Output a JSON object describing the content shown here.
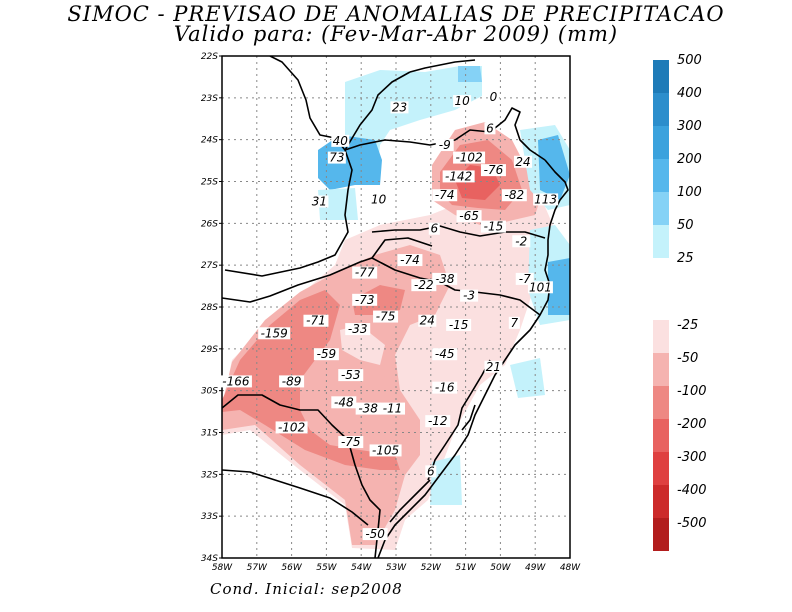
{
  "title": "SIMOC - PREVISAO DE ANOMALIAS DE PRECIPITACAO",
  "subtitle": "Valido para: (Fev-Mar-Abr 2009) (mm)",
  "footer": "Cond. Inicial: sep2008",
  "axes": {
    "lat_labels": [
      "22S",
      "23S",
      "24S",
      "25S",
      "26S",
      "27S",
      "28S",
      "29S",
      "30S",
      "31S",
      "32S",
      "33S",
      "34S"
    ],
    "lon_labels": [
      "58W",
      "57W",
      "56W",
      "55W",
      "54W",
      "53W",
      "52W",
      "51W",
      "50W",
      "49W",
      "48W"
    ]
  },
  "colorbar": {
    "positive_labels": [
      "500",
      "400",
      "300",
      "200",
      "100",
      "50",
      "25"
    ],
    "negative_labels": [
      "-25",
      "-50",
      "-100",
      "-200",
      "-300",
      "-400",
      "-500"
    ],
    "positive_colors": [
      "#1e7bb8",
      "#2c8ecc",
      "#3ba2dd",
      "#55b7ec",
      "#85d2f6",
      "#c4f2fb"
    ],
    "negative_colors": [
      "#fbe0e0",
      "#f5b3b0",
      "#ee8883",
      "#e86260",
      "#df4040",
      "#cc2a2a",
      "#b21d1d"
    ]
  },
  "contour_labels": [
    {
      "text": "23",
      "lon": -52.9,
      "lat": -23.3
    },
    {
      "text": "10",
      "lon": -51.1,
      "lat": -23.15
    },
    {
      "text": "0",
      "lon": -50.2,
      "lat": -23.05
    },
    {
      "text": "6",
      "lon": -50.3,
      "lat": -23.8
    },
    {
      "text": "40",
      "lon": -54.6,
      "lat": -24.1
    },
    {
      "text": "73",
      "lon": -54.7,
      "lat": -24.5
    },
    {
      "text": "-9",
      "lon": -51.6,
      "lat": -24.2
    },
    {
      "text": "-102",
      "lon": -50.9,
      "lat": -24.5
    },
    {
      "text": "24",
      "lon": -49.35,
      "lat": -24.6
    },
    {
      "text": "-76",
      "lon": -50.2,
      "lat": -24.8
    },
    {
      "text": "-142",
      "lon": -51.2,
      "lat": -24.95
    },
    {
      "text": "-74",
      "lon": -51.6,
      "lat": -25.4
    },
    {
      "text": "-82",
      "lon": -49.6,
      "lat": -25.4
    },
    {
      "text": "113",
      "lon": -48.7,
      "lat": -25.5
    },
    {
      "text": "31",
      "lon": -55.2,
      "lat": -25.55
    },
    {
      "text": "10",
      "lon": -53.5,
      "lat": -25.5
    },
    {
      "text": "-65",
      "lon": -50.9,
      "lat": -25.9
    },
    {
      "text": "-15",
      "lon": -50.2,
      "lat": -26.15
    },
    {
      "text": "6",
      "lon": -51.9,
      "lat": -26.2
    },
    {
      "text": "-2",
      "lon": -49.4,
      "lat": -26.5
    },
    {
      "text": "-74",
      "lon": -52.6,
      "lat": -26.95
    },
    {
      "text": "-77",
      "lon": -53.9,
      "lat": -27.25
    },
    {
      "text": "-38",
      "lon": -51.6,
      "lat": -27.4
    },
    {
      "text": "-22",
      "lon": -52.2,
      "lat": -27.55
    },
    {
      "text": "-7",
      "lon": -49.3,
      "lat": -27.4
    },
    {
      "text": "101",
      "lon": -48.85,
      "lat": -27.6
    },
    {
      "text": "-3",
      "lon": -50.9,
      "lat": -27.8
    },
    {
      "text": "-73",
      "lon": -53.9,
      "lat": -27.9
    },
    {
      "text": "-75",
      "lon": -53.3,
      "lat": -28.3
    },
    {
      "text": "-71",
      "lon": -55.3,
      "lat": -28.4
    },
    {
      "text": "24",
      "lon": -52.1,
      "lat": -28.4
    },
    {
      "text": "-15",
      "lon": -51.2,
      "lat": -28.5
    },
    {
      "text": "7",
      "lon": -49.6,
      "lat": -28.45
    },
    {
      "text": "-33",
      "lon": -54.1,
      "lat": -28.6
    },
    {
      "text": "-159",
      "lon": -56.5,
      "lat": -28.7
    },
    {
      "text": "-59",
      "lon": -55.0,
      "lat": -29.2
    },
    {
      "text": "-45",
      "lon": -51.6,
      "lat": -29.2
    },
    {
      "text": "21",
      "lon": -50.2,
      "lat": -29.5
    },
    {
      "text": "-53",
      "lon": -54.3,
      "lat": -29.7
    },
    {
      "text": "-166",
      "lon": -57.6,
      "lat": -29.85
    },
    {
      "text": "-89",
      "lon": -56.0,
      "lat": -29.85
    },
    {
      "text": "-16",
      "lon": -51.6,
      "lat": -30.0
    },
    {
      "text": "-48",
      "lon": -54.5,
      "lat": -30.35
    },
    {
      "text": "-38",
      "lon": -53.8,
      "lat": -30.5
    },
    {
      "text": "-11",
      "lon": -53.1,
      "lat": -30.5
    },
    {
      "text": "-12",
      "lon": -51.8,
      "lat": -30.8
    },
    {
      "text": "-102",
      "lon": -56.0,
      "lat": -30.95
    },
    {
      "text": "-75",
      "lon": -54.3,
      "lat": -31.3
    },
    {
      "text": "-105",
      "lon": -53.3,
      "lat": -31.5
    },
    {
      "text": "6",
      "lon": -52.0,
      "lat": -32.0
    },
    {
      "text": "-50",
      "lon": -53.6,
      "lat": -33.5
    }
  ]
}
